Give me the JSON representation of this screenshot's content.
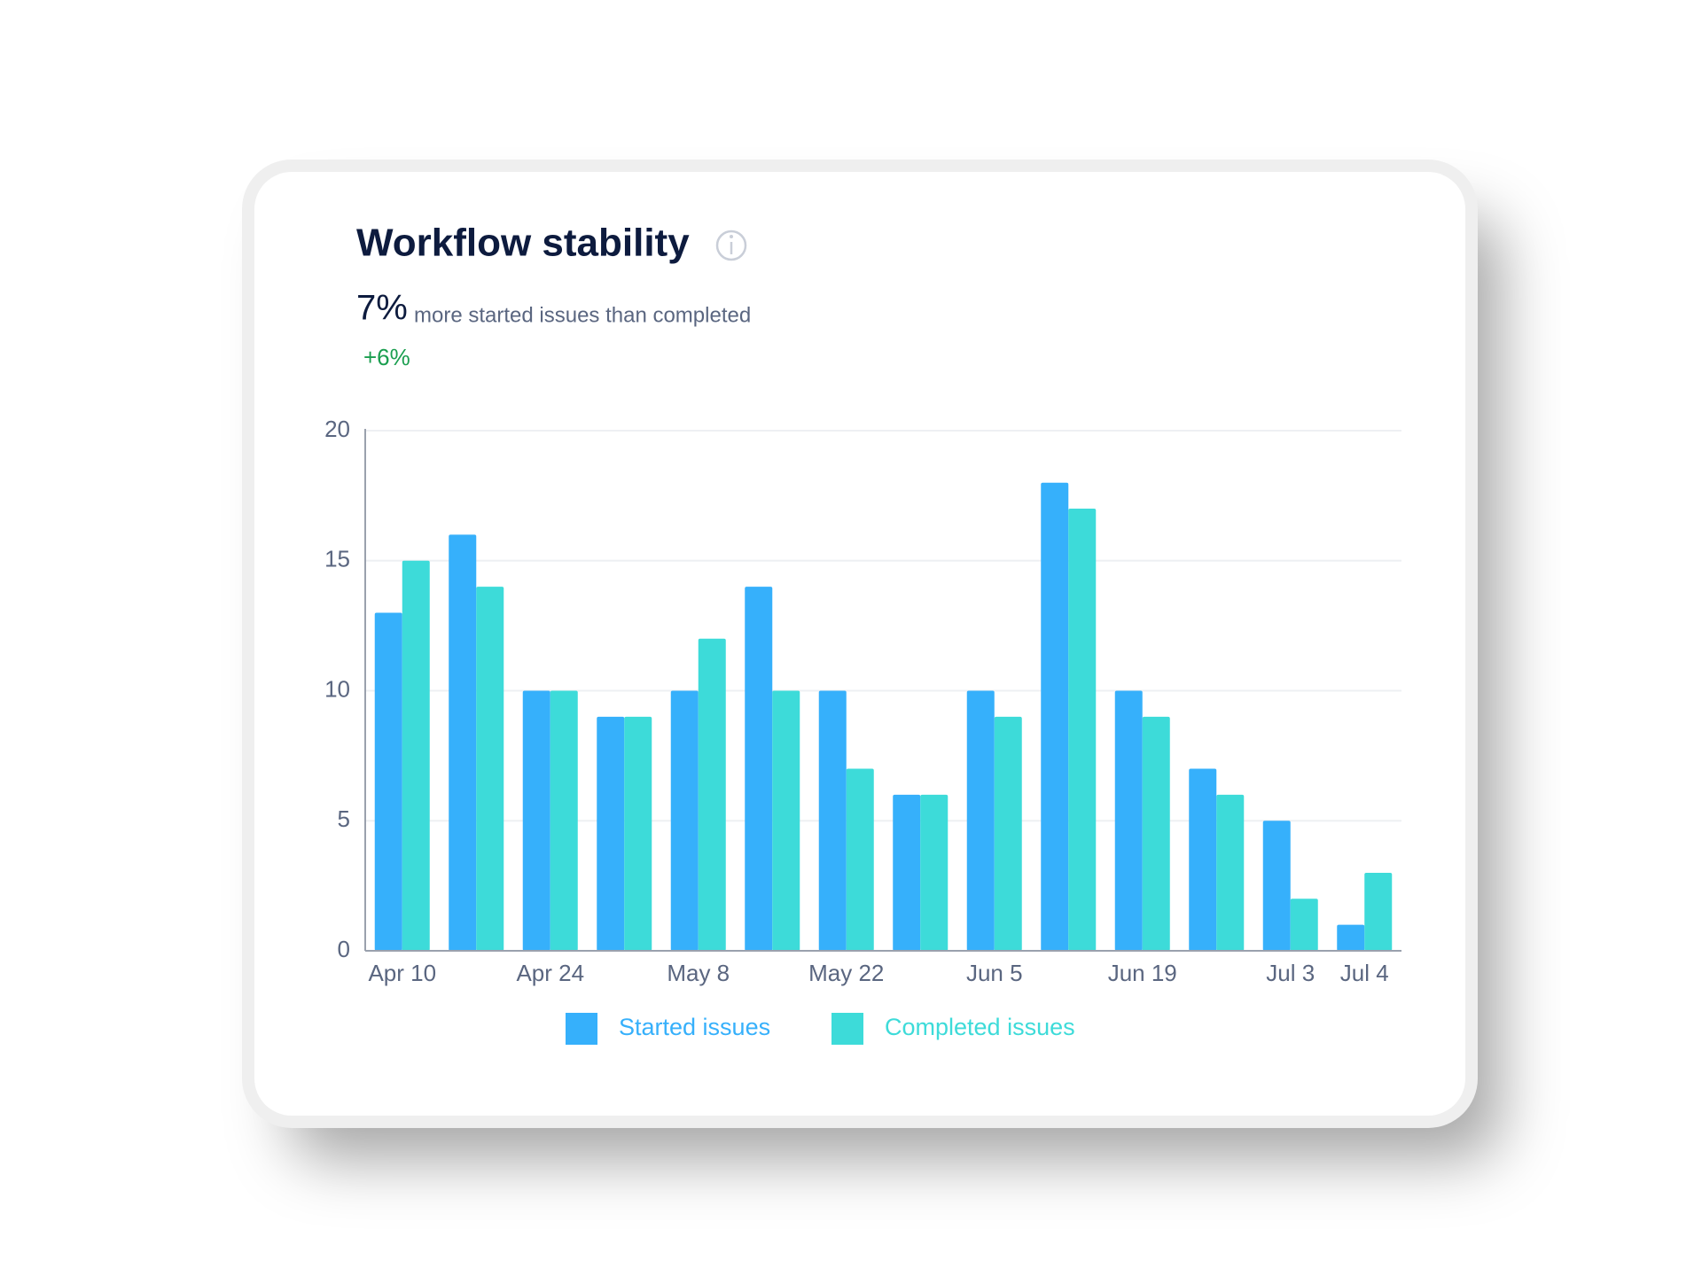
{
  "chart_data": {
    "type": "bar",
    "title": "Workflow stability",
    "summary": "7%",
    "summary_text": "more started issues than completed",
    "change": "+6%",
    "categories": [
      "Apr 10",
      null,
      "Apr 24",
      null,
      "May 8",
      null,
      "May 22",
      null,
      "Jun 5",
      null,
      "Jun 19",
      null,
      "Jul 3",
      "Jul 4"
    ],
    "series": [
      {
        "name": "Started issues",
        "color": "#36b0fb",
        "values": [
          13,
          16,
          10,
          9,
          10,
          14,
          10,
          6,
          10,
          18,
          10,
          7,
          5,
          1
        ]
      },
      {
        "name": "Completed issues",
        "color": "#3ddbd9",
        "values": [
          15,
          14,
          10,
          9,
          12,
          10,
          7,
          6,
          9,
          17,
          9,
          6,
          2,
          3
        ]
      }
    ],
    "ylim": [
      0,
      20
    ],
    "yticks": [
      0,
      5,
      10,
      15,
      20
    ],
    "grid": true
  }
}
